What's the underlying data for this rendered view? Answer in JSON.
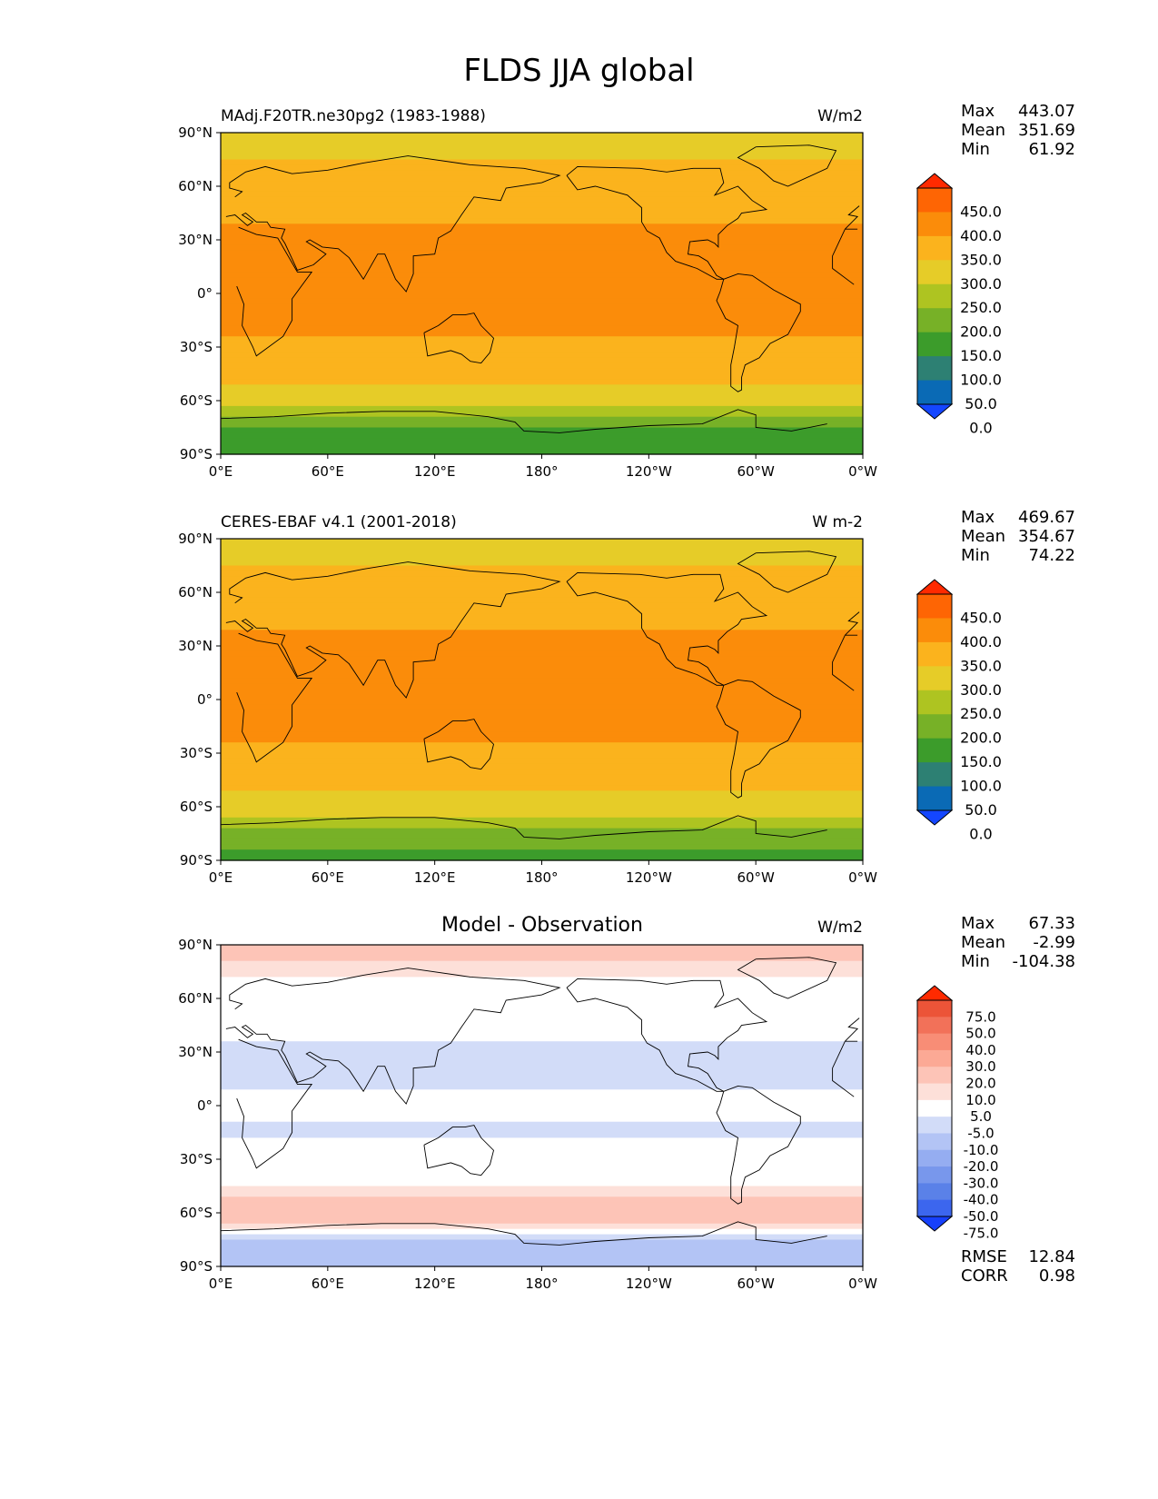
{
  "title": "FLDS JJA global",
  "panels": [
    {
      "left_title": "MAdj.F20TR.ne30pg2 (1983-1988)",
      "center_title": "",
      "units": "W/m2",
      "stats": [
        {
          "label": "Max",
          "value": "443.07"
        },
        {
          "label": "Mean",
          "value": "351.69"
        },
        {
          "label": "Min",
          "value": "61.92"
        }
      ],
      "colorbar_labels": [
        "450.0",
        "400.0",
        "350.0",
        "300.0",
        "250.0",
        "200.0",
        "150.0",
        "100.0",
        "50.0",
        "0.0"
      ]
    },
    {
      "left_title": "CERES-EBAF v4.1 (2001-2018)",
      "center_title": "",
      "units": "W m-2",
      "stats": [
        {
          "label": "Max",
          "value": "469.67"
        },
        {
          "label": "Mean",
          "value": "354.67"
        },
        {
          "label": "Min",
          "value": "74.22"
        }
      ],
      "colorbar_labels": [
        "450.0",
        "400.0",
        "350.0",
        "300.0",
        "250.0",
        "200.0",
        "150.0",
        "100.0",
        "50.0",
        "0.0"
      ]
    },
    {
      "left_title": "",
      "center_title": "Model - Observation",
      "units": "W/m2",
      "stats": [
        {
          "label": "Max",
          "value": "67.33"
        },
        {
          "label": "Mean",
          "value": "-2.99"
        },
        {
          "label": "Min",
          "value": "-104.38"
        }
      ],
      "colorbar_labels": [
        "75.0",
        "50.0",
        "40.0",
        "30.0",
        "20.0",
        "10.0",
        "5.0",
        "-5.0",
        "-10.0",
        "-20.0",
        "-30.0",
        "-40.0",
        "-50.0",
        "-75.0"
      ],
      "metrics": [
        {
          "label": "RMSE",
          "value": "12.84"
        },
        {
          "label": "CORR",
          "value": "0.98"
        }
      ]
    }
  ],
  "axes": {
    "lat_ticks": [
      "90°N",
      "60°N",
      "30°N",
      "0°",
      "30°S",
      "60°S",
      "90°S"
    ],
    "lon_ticks": [
      "0°E",
      "60°E",
      "120°E",
      "180°",
      "120°W",
      "60°W",
      "0°W"
    ]
  },
  "colors": {
    "abs_scale": [
      "#1446ff",
      "#0a6ab5",
      "#2d8073",
      "#3c9c2b",
      "#77b127",
      "#aec421",
      "#e6cc28",
      "#fbb31d",
      "#fb8c0a",
      "#fe6504",
      "#ff2a00"
    ],
    "diff_scale": [
      "#1640fb",
      "#3c66ee",
      "#5a81e8",
      "#7897ec",
      "#95adf1",
      "#b3c4f5",
      "#d2dcf8",
      "#ffffff",
      "#fde0d9",
      "#fdc4b7",
      "#fca995",
      "#f88d76",
      "#f27159",
      "#ec5438",
      "#ff2a00"
    ],
    "land": "#000000"
  },
  "chart_data": [
    {
      "type": "heatmap",
      "title": "MAdj.F20TR.ne30pg2 (1983-1988)",
      "units": "W/m2",
      "xlim": [
        0,
        360
      ],
      "ylim": [
        -90,
        90
      ],
      "levels": [
        0,
        50,
        100,
        150,
        200,
        250,
        300,
        350,
        400,
        450
      ],
      "zonal_profile": {
        "lat": [
          -90,
          -75,
          -65,
          -55,
          -45,
          -30,
          -15,
          0,
          15,
          30,
          45,
          60,
          75,
          90
        ],
        "value": [
          110,
          150,
          240,
          290,
          320,
          340,
          360,
          390,
          390,
          360,
          340,
          320,
          300,
          290
        ]
      },
      "max": 443.07,
      "mean": 351.69,
      "min": 61.92
    },
    {
      "type": "heatmap",
      "title": "CERES-EBAF v4.1 (2001-2018)",
      "units": "W m-2",
      "xlim": [
        0,
        360
      ],
      "ylim": [
        -90,
        90
      ],
      "levels": [
        0,
        50,
        100,
        150,
        200,
        250,
        300,
        350,
        400,
        450
      ],
      "zonal_profile": {
        "lat": [
          -90,
          -75,
          -65,
          -55,
          -45,
          -30,
          -15,
          0,
          15,
          30,
          45,
          60,
          75,
          90
        ],
        "value": [
          130,
          170,
          250,
          290,
          315,
          340,
          365,
          395,
          400,
          370,
          340,
          320,
          300,
          280
        ]
      },
      "max": 469.67,
      "mean": 354.67,
      "min": 74.22
    },
    {
      "type": "heatmap",
      "title": "Model - Observation",
      "units": "W/m2",
      "xlim": [
        0,
        360
      ],
      "ylim": [
        -90,
        90
      ],
      "levels": [
        -75,
        -50,
        -40,
        -30,
        -20,
        -10,
        -5,
        5,
        10,
        20,
        30,
        40,
        50,
        75
      ],
      "zonal_profile": {
        "lat": [
          -90,
          -75,
          -65,
          -55,
          -45,
          -30,
          -15,
          0,
          15,
          30,
          45,
          60,
          75,
          90
        ],
        "value": [
          -20,
          -10,
          15,
          12,
          5,
          0,
          -6,
          -4,
          -6,
          -8,
          0,
          -3,
          8,
          12
        ]
      },
      "max": 67.33,
      "mean": -2.99,
      "min": -104.38,
      "rmse": 12.84,
      "corr": 0.98
    }
  ]
}
